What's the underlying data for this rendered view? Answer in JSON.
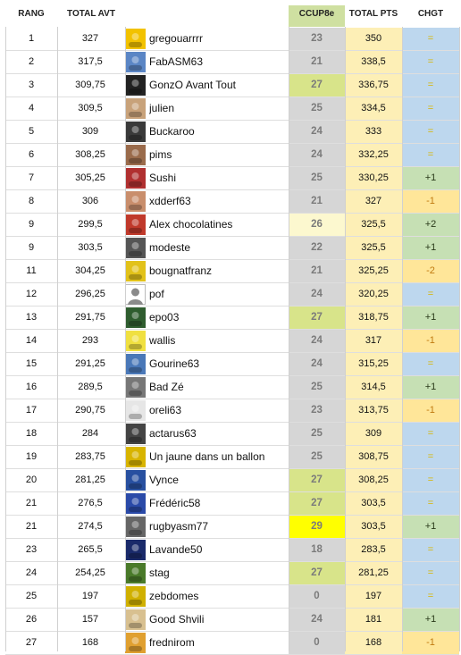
{
  "headers": {
    "rang": "RANG",
    "total_avt": "TOTAL AVT",
    "ccup": "CCUP8e",
    "total_pts": "TOTAL PTS",
    "chgt": "CHGT"
  },
  "colors": {
    "ccup_grey": "#d6d6d6",
    "ccup_green": "#d8e48a",
    "ccup_paleyellow": "#fcf8cf",
    "ccup_yellow": "#ffff00",
    "total_pts_bg": "#fdefb6",
    "chgt_blue": "#bdd7ee",
    "chgt_green": "#c6e0b4",
    "chgt_yellow": "#ffe699",
    "chgt_text_up": "#2a3a1a",
    "chgt_text_neutral": "#d7b400",
    "chgt_text_down": "#c07a10"
  },
  "rows": [
    {
      "rank": "1",
      "avt": "327",
      "name": "gregouarrrr",
      "avatar": "yellow-heart-avatar-icon",
      "ccup": "23",
      "ccup_bg": "grey",
      "total": "350",
      "chg": "=",
      "chg_type": "eq"
    },
    {
      "rank": "2",
      "avt": "317,5",
      "name": "FabASM63",
      "avatar": "blue-photo-avatar-icon",
      "ccup": "21",
      "ccup_bg": "grey",
      "total": "338,5",
      "chg": "=",
      "chg_type": "eq"
    },
    {
      "rank": "3",
      "avt": "309,75",
      "name": "GonzO Avant Tout",
      "avatar": "cross-avatar-icon",
      "ccup": "27",
      "ccup_bg": "green",
      "total": "336,75",
      "chg": "=",
      "chg_type": "eq"
    },
    {
      "rank": "4",
      "avt": "309,5",
      "name": "julien",
      "avatar": "cartoon-avatar-icon",
      "ccup": "25",
      "ccup_bg": "grey",
      "total": "334,5",
      "chg": "=",
      "chg_type": "eq"
    },
    {
      "rank": "5",
      "avt": "309",
      "name": "Buckaroo",
      "avatar": "dark-photo-avatar-icon",
      "ccup": "24",
      "ccup_bg": "grey",
      "total": "333",
      "chg": "=",
      "chg_type": "eq"
    },
    {
      "rank": "6",
      "avt": "308,25",
      "name": "pims",
      "avatar": "photo-avatar-icon",
      "ccup": "24",
      "ccup_bg": "grey",
      "total": "332,25",
      "chg": "=",
      "chg_type": "eq"
    },
    {
      "rank": "7",
      "avt": "305,25",
      "name": "Sushi",
      "avatar": "crowd-avatar-icon",
      "ccup": "25",
      "ccup_bg": "grey",
      "total": "330,25",
      "chg": "+1",
      "chg_type": "up"
    },
    {
      "rank": "8",
      "avt": "306",
      "name": "xdderf63",
      "avatar": "faces-avatar-icon",
      "ccup": "21",
      "ccup_bg": "grey",
      "total": "327",
      "chg": "-1",
      "chg_type": "down"
    },
    {
      "rank": "9",
      "avt": "299,5",
      "name": "Alex chocolatines",
      "avatar": "club-logo-avatar-icon",
      "ccup": "26",
      "ccup_bg": "paleyellow",
      "total": "325,5",
      "chg": "+2",
      "chg_type": "up"
    },
    {
      "rank": "9",
      "avt": "303,5",
      "name": "modeste",
      "avatar": "dark-photo-avatar-icon",
      "ccup": "22",
      "ccup_bg": "grey",
      "total": "325,5",
      "chg": "+1",
      "chg_type": "up"
    },
    {
      "rank": "11",
      "avt": "304,25",
      "name": "bougnatfranz",
      "avatar": "yellow-team-avatar-icon",
      "ccup": "21",
      "ccup_bg": "grey",
      "total": "325,25",
      "chg": "-2",
      "chg_type": "down"
    },
    {
      "rank": "12",
      "avt": "296,25",
      "name": "pof",
      "avatar": "default-user-avatar-icon",
      "ccup": "24",
      "ccup_bg": "grey",
      "total": "320,25",
      "chg": "=",
      "chg_type": "eq"
    },
    {
      "rank": "13",
      "avt": "291,75",
      "name": "epo03",
      "avatar": "stadium-avatar-icon",
      "ccup": "27",
      "ccup_bg": "green",
      "total": "318,75",
      "chg": "+1",
      "chg_type": "up"
    },
    {
      "rank": "14",
      "avt": "293",
      "name": "wallis",
      "avatar": "yesss-banner-avatar-icon",
      "ccup": "24",
      "ccup_bg": "grey",
      "total": "317",
      "chg": "-1",
      "chg_type": "down"
    },
    {
      "rank": "15",
      "avt": "291,25",
      "name": "Gourine63",
      "avatar": "blue-sky-avatar-icon",
      "ccup": "24",
      "ccup_bg": "grey",
      "total": "315,25",
      "chg": "=",
      "chg_type": "eq"
    },
    {
      "rank": "16",
      "avt": "289,5",
      "name": "Bad Zé",
      "avatar": "bw-faces-avatar-icon",
      "ccup": "25",
      "ccup_bg": "grey",
      "total": "314,5",
      "chg": "+1",
      "chg_type": "up"
    },
    {
      "rank": "17",
      "avt": "290,75",
      "name": "oreli63",
      "avatar": "player-avatar-icon",
      "ccup": "23",
      "ccup_bg": "grey",
      "total": "313,75",
      "chg": "-1",
      "chg_type": "down"
    },
    {
      "rank": "18",
      "avt": "284",
      "name": "actarus63",
      "avatar": "robot-avatar-icon",
      "ccup": "25",
      "ccup_bg": "grey",
      "total": "309",
      "chg": "=",
      "chg_type": "eq"
    },
    {
      "rank": "19",
      "avt": "283,75",
      "name": "Un jaune dans un ballon",
      "avatar": "ball-avatar-icon",
      "ccup": "25",
      "ccup_bg": "grey",
      "total": "308,75",
      "chg": "=",
      "chg_type": "eq"
    },
    {
      "rank": "20",
      "avt": "281,25",
      "name": "Vynce",
      "avatar": "blue-yellow-avatar-icon",
      "ccup": "27",
      "ccup_bg": "green",
      "total": "308,25",
      "chg": "=",
      "chg_type": "eq"
    },
    {
      "rank": "21",
      "avt": "276,5",
      "name": "Frédéric58",
      "avatar": "blue-badge-avatar-icon",
      "ccup": "27",
      "ccup_bg": "green",
      "total": "303,5",
      "chg": "=",
      "chg_type": "eq"
    },
    {
      "rank": "21",
      "avt": "274,5",
      "name": "rugbyasm77",
      "avatar": "huddle-avatar-icon",
      "ccup": "29",
      "ccup_bg": "yellow",
      "total": "303,5",
      "chg": "+1",
      "chg_type": "up"
    },
    {
      "rank": "23",
      "avt": "265,5",
      "name": "Lavande50",
      "avatar": "silhouette-avatar-icon",
      "ccup": "18",
      "ccup_bg": "grey",
      "total": "283,5",
      "chg": "=",
      "chg_type": "eq"
    },
    {
      "rank": "24",
      "avt": "254,25",
      "name": "stag",
      "avatar": "pitch-avatar-icon",
      "ccup": "27",
      "ccup_bg": "green",
      "total": "281,25",
      "chg": "=",
      "chg_type": "eq"
    },
    {
      "rank": "25",
      "avt": "197",
      "name": "zebdomes",
      "avatar": "team-avatar-icon",
      "ccup": "0",
      "ccup_bg": "grey",
      "total": "197",
      "chg": "=",
      "chg_type": "eq"
    },
    {
      "rank": "26",
      "avt": "157",
      "name": "Good Shvili",
      "avatar": "sand-avatar-icon",
      "ccup": "24",
      "ccup_bg": "grey",
      "total": "181",
      "chg": "+1",
      "chg_type": "up"
    },
    {
      "rank": "27",
      "avt": "168",
      "name": "frednirom",
      "avatar": "mascot-avatar-icon",
      "ccup": "0",
      "ccup_bg": "grey",
      "total": "168",
      "chg": "-1",
      "chg_type": "down"
    }
  ]
}
